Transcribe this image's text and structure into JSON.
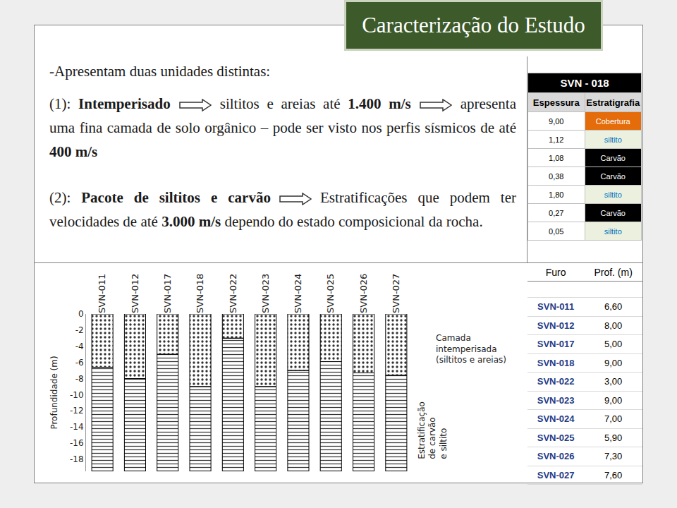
{
  "header": {
    "title": "Caracterização do Estudo"
  },
  "text": {
    "intro": "-Apresentam duas unidades distintas:",
    "paragraphs": [
      [
        {
          "text": "(1): "
        },
        {
          "text": "Intemperisado",
          "bold": true
        },
        {
          "arrow": true
        },
        {
          "text": "siltitos e areias até "
        },
        {
          "text": "1.400 m/s",
          "bold": true
        },
        {
          "arrow": true
        },
        {
          "text": "apresenta uma fina camada de solo orgânico – pode ser visto nos perfis sísmicos de até "
        },
        {
          "text": "400 m/s",
          "bold": true
        }
      ],
      [
        {
          "text": "(2): "
        },
        {
          "text": "Pacote de siltitos e carvão",
          "bold": true
        },
        {
          "arrow": true
        },
        {
          "text": "Estratificações que podem ter velocidades de até "
        },
        {
          "text": "3.000 m/s",
          "bold": true
        },
        {
          "text": " dependo do estado composicional da rocha."
        }
      ]
    ]
  },
  "table_svn018": {
    "title": "SVN - 018",
    "columns": [
      "Espessura",
      "Estratigrafia"
    ],
    "rows": [
      {
        "values": [
          "9,00",
          "Cobertura"
        ],
        "color": "#e46c0a"
      },
      {
        "values": [
          "1,12",
          "siltito"
        ],
        "color": "#ebf1de"
      },
      {
        "values": [
          "1,08",
          "Carvão"
        ],
        "color": "#000000"
      },
      {
        "values": [
          "0,38",
          "Carvão"
        ],
        "color": "#000000"
      },
      {
        "values": [
          "1,80",
          "siltito"
        ],
        "color": "#ebf1de"
      },
      {
        "values": [
          "0,27",
          "Carvão"
        ],
        "color": "#000000"
      },
      {
        "values": [
          "0,05",
          "siltito"
        ],
        "color": "#ebf1de"
      }
    ]
  },
  "table_furos": {
    "columns": [
      "Furo",
      "Prof. (m)"
    ],
    "rows": [
      [
        "SVN-011",
        "6,60"
      ],
      [
        "SVN-012",
        "8,00"
      ],
      [
        "SVN-017",
        "5,00"
      ],
      [
        "SVN-018",
        "9,00"
      ],
      [
        "SVN-022",
        "3,00"
      ],
      [
        "SVN-023",
        "9,00"
      ],
      [
        "SVN-024",
        "7,00"
      ],
      [
        "SVN-025",
        "5,90"
      ],
      [
        "SVN-026",
        "7,30"
      ],
      [
        "SVN-027",
        "7,60"
      ]
    ]
  },
  "chart_data": {
    "type": "bar",
    "stacked": true,
    "y_label": "Profundidade (m)",
    "categories": [
      "SVN-011",
      "SVN-012",
      "SVN-017",
      "SVN-018",
      "SVN-022",
      "SVN-023",
      "SVN-024",
      "SVN-025",
      "SVN-026",
      "SVN-027"
    ],
    "series": [
      {
        "name": "Camada\nintemperisada\n(siltitos e areias)",
        "color": "#ffffff",
        "values": [
          -6.6,
          -8.0,
          -5.0,
          -9.0,
          -3.0,
          -9.0,
          -7.0,
          -5.9,
          -7.3,
          -7.6
        ]
      },
      {
        "name": "Estratificação\nde carvão\ne siltito",
        "color": "#a6a6a6",
        "values": [
          -12.9,
          -11.5,
          -14.5,
          -10.5,
          -16.5,
          -10.5,
          -12.5,
          -13.6,
          -12.2,
          -11.9
        ]
      }
    ],
    "ylim": [
      -19.5,
      0
    ],
    "yticks": [
      0,
      -2,
      -4,
      -6,
      -8,
      -10,
      -12,
      -14,
      -16,
      -18
    ],
    "grid": false
  }
}
